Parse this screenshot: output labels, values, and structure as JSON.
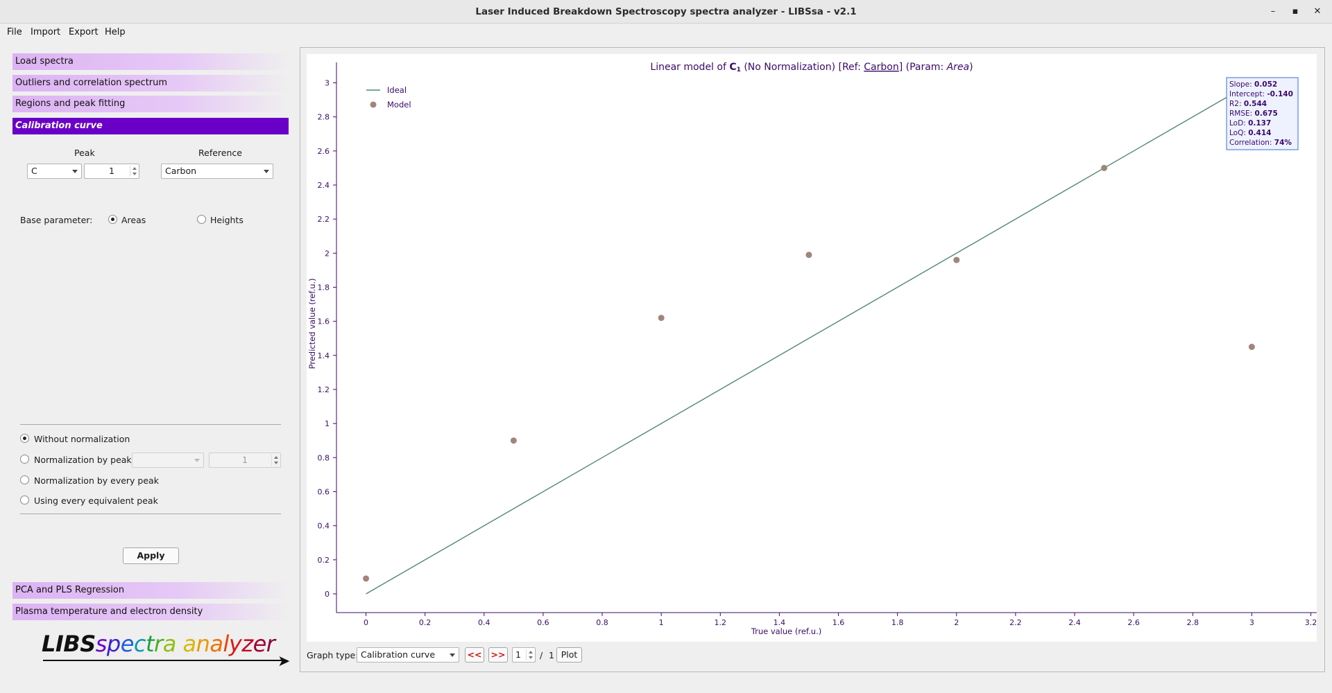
{
  "window": {
    "title": "Laser Induced Breakdown Spectroscopy spectra analyzer - LIBSsa - v2.1",
    "minimize_glyph": "–",
    "maximize_glyph": "▪",
    "close_glyph": "✕"
  },
  "menu": {
    "items": [
      "File",
      "Import",
      "Export",
      "Help"
    ]
  },
  "sidebar": {
    "sections_top": [
      "Load spectra",
      "Outliers and correlation spectrum",
      "Regions and peak fitting",
      "Calibration curve"
    ],
    "active_section": "Calibration curve",
    "sections_bottom": [
      "PCA and PLS Regression",
      "Plasma temperature and electron density"
    ],
    "accent_color": "#6a00c8",
    "section_color": "#dcb3f3"
  },
  "calibration": {
    "peak_label": "Peak",
    "reference_label": "Reference",
    "peak_value": "C",
    "peak_index": "1",
    "reference_value": "Carbon",
    "base_parameter_label": "Base parameter:",
    "base_options": [
      "Areas",
      "Heights"
    ],
    "base_selected": "Areas",
    "normalization_options": [
      "Without normalization",
      "Normalization by peak:",
      "Normalization by every peak",
      "Using every equivalent peak"
    ],
    "normalization_selected": "Without normalization",
    "norm_peak_index": "1",
    "apply_label": "Apply"
  },
  "logo": {
    "letters": [
      "LIBS",
      "s",
      "p",
      "e",
      "c",
      "t",
      "r",
      "a",
      " ",
      "a",
      "n",
      "a",
      "l",
      "y",
      "z",
      "e",
      "r"
    ],
    "colors": [
      "#111111",
      "#6a00c8",
      "#3a1fd0",
      "#1d5fe0",
      "#0a9ab0",
      "#1aa040",
      "#4cb020",
      "#8fbf10",
      "#000000",
      "#d6b800",
      "#e89a00",
      "#f07000",
      "#e84000",
      "#d81818",
      "#c00020",
      "#a00030",
      "#8a0040"
    ]
  },
  "plot": {
    "title_prefix": "Linear model of ",
    "title_element": "C",
    "title_subscript": "1",
    "title_norm": " (No Normalization) [Ref: ",
    "title_ref": "Carbon",
    "title_param_prefix": "] (Param: ",
    "title_param": "Area",
    "title_suffix": ")",
    "stats": [
      {
        "label": "Slope: ",
        "value": "0.052"
      },
      {
        "label": "Intercept: ",
        "value": "-0.140"
      },
      {
        "label": "R2: ",
        "value": "0.544"
      },
      {
        "label": "RMSE: ",
        "value": "0.675"
      },
      {
        "label": "LoD: ",
        "value": "0.137"
      },
      {
        "label": "LoQ: ",
        "value": "0.414"
      },
      {
        "label": "Correlation: ",
        "value": "74%"
      }
    ]
  },
  "chart_data": {
    "type": "scatter",
    "title": "Linear model of C₁ (No Normalization) [Ref: Carbon] (Param: Area)",
    "xlabel": "True value (ref.u.)",
    "ylabel": "Predicted value (ref.u.)",
    "xlim": [
      -0.1,
      3.22
    ],
    "ylim": [
      -0.11,
      3.12
    ],
    "xticks": [
      "0",
      "0.2",
      "0.4",
      "0.6",
      "0.8",
      "1",
      "1.2",
      "1.4",
      "1.6",
      "1.8",
      "2",
      "2.2",
      "2.4",
      "2.6",
      "2.8",
      "3",
      "3.2"
    ],
    "yticks": [
      "0",
      "0.2",
      "0.4",
      "0.6",
      "0.8",
      "1",
      "1.2",
      "1.4",
      "1.6",
      "1.8",
      "2",
      "2.2",
      "2.4",
      "2.6",
      "2.8",
      "3"
    ],
    "legend_position": "top-left",
    "series": [
      {
        "name": "Ideal",
        "kind": "line",
        "color": "#4f8a6e",
        "x": [
          0,
          3
        ],
        "y": [
          0,
          3
        ]
      },
      {
        "name": "Model",
        "kind": "scatter",
        "color": "#a0857a",
        "x": [
          0,
          0.5,
          1,
          1.5,
          2,
          2.5,
          3
        ],
        "y": [
          0.09,
          0.9,
          1.62,
          1.99,
          1.96,
          2.5,
          1.45
        ]
      }
    ],
    "axis_color": "#3a0a6a",
    "text_color": "#3a0a6a"
  },
  "graph_controls": {
    "graph_type_label": "Graph type:",
    "graph_type_value": "Calibration curve",
    "prev_label": "<<",
    "next_label": ">>",
    "page_value": "1",
    "page_sep": "/",
    "page_total": "1",
    "plot_label": "Plot"
  }
}
